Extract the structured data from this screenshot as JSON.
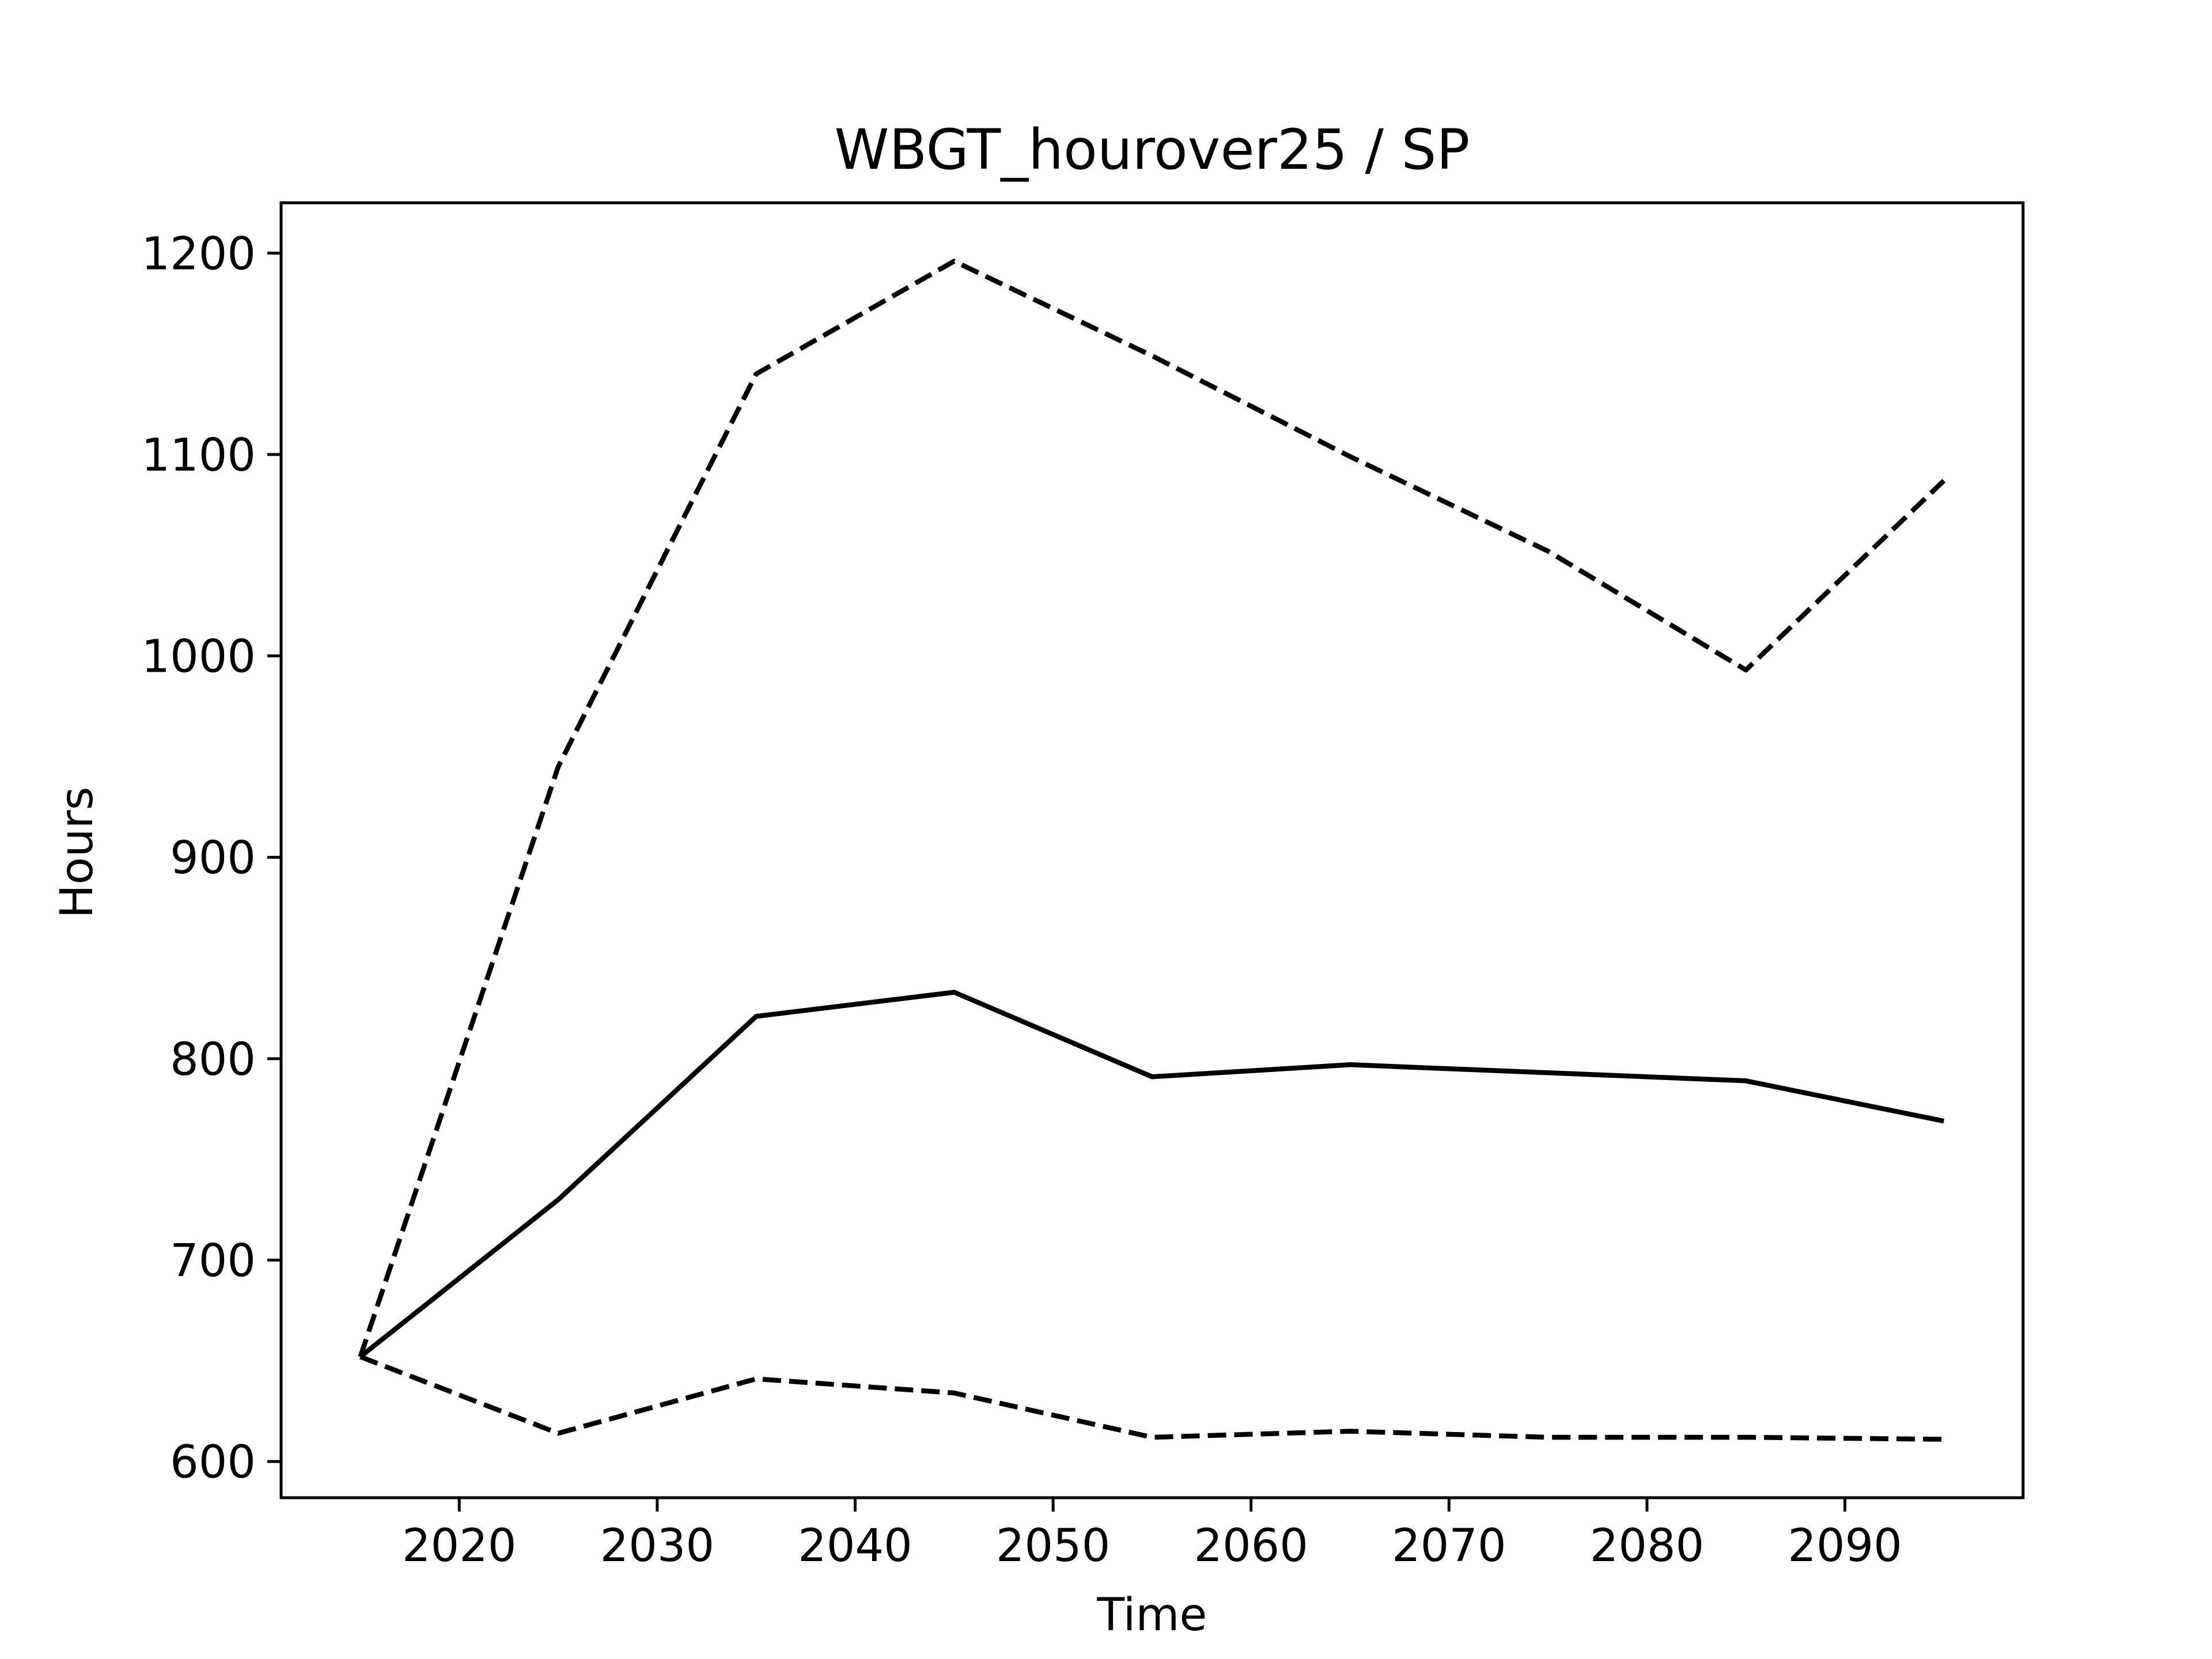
{
  "chart_data": {
    "type": "line",
    "title": "WBGT_hourover25 / SP",
    "xlabel": "Time",
    "ylabel": "Hours",
    "xlim": [
      2011,
      2099
    ],
    "ylim": [
      582,
      1225
    ],
    "x_ticks": [
      2020,
      2030,
      2040,
      2050,
      2060,
      2070,
      2080,
      2090
    ],
    "y_ticks": [
      600,
      700,
      800,
      900,
      1000,
      1100,
      1200
    ],
    "grid": false,
    "x": [
      2015,
      2025,
      2035,
      2045,
      2055,
      2065,
      2075,
      2085,
      2095
    ],
    "series": [
      {
        "style": "dashed",
        "color": "#000000",
        "values": [
          652,
          945,
          1140,
          1196,
          1149,
          1099,
          1052,
          993,
          1087
        ]
      },
      {
        "style": "solid",
        "color": "#000000",
        "values": [
          652,
          730,
          821,
          833,
          791,
          797,
          793,
          789,
          769
        ]
      },
      {
        "style": "dashed",
        "color": "#000000",
        "values": [
          652,
          614,
          641,
          634,
          612,
          615,
          612,
          612,
          611
        ]
      }
    ]
  }
}
